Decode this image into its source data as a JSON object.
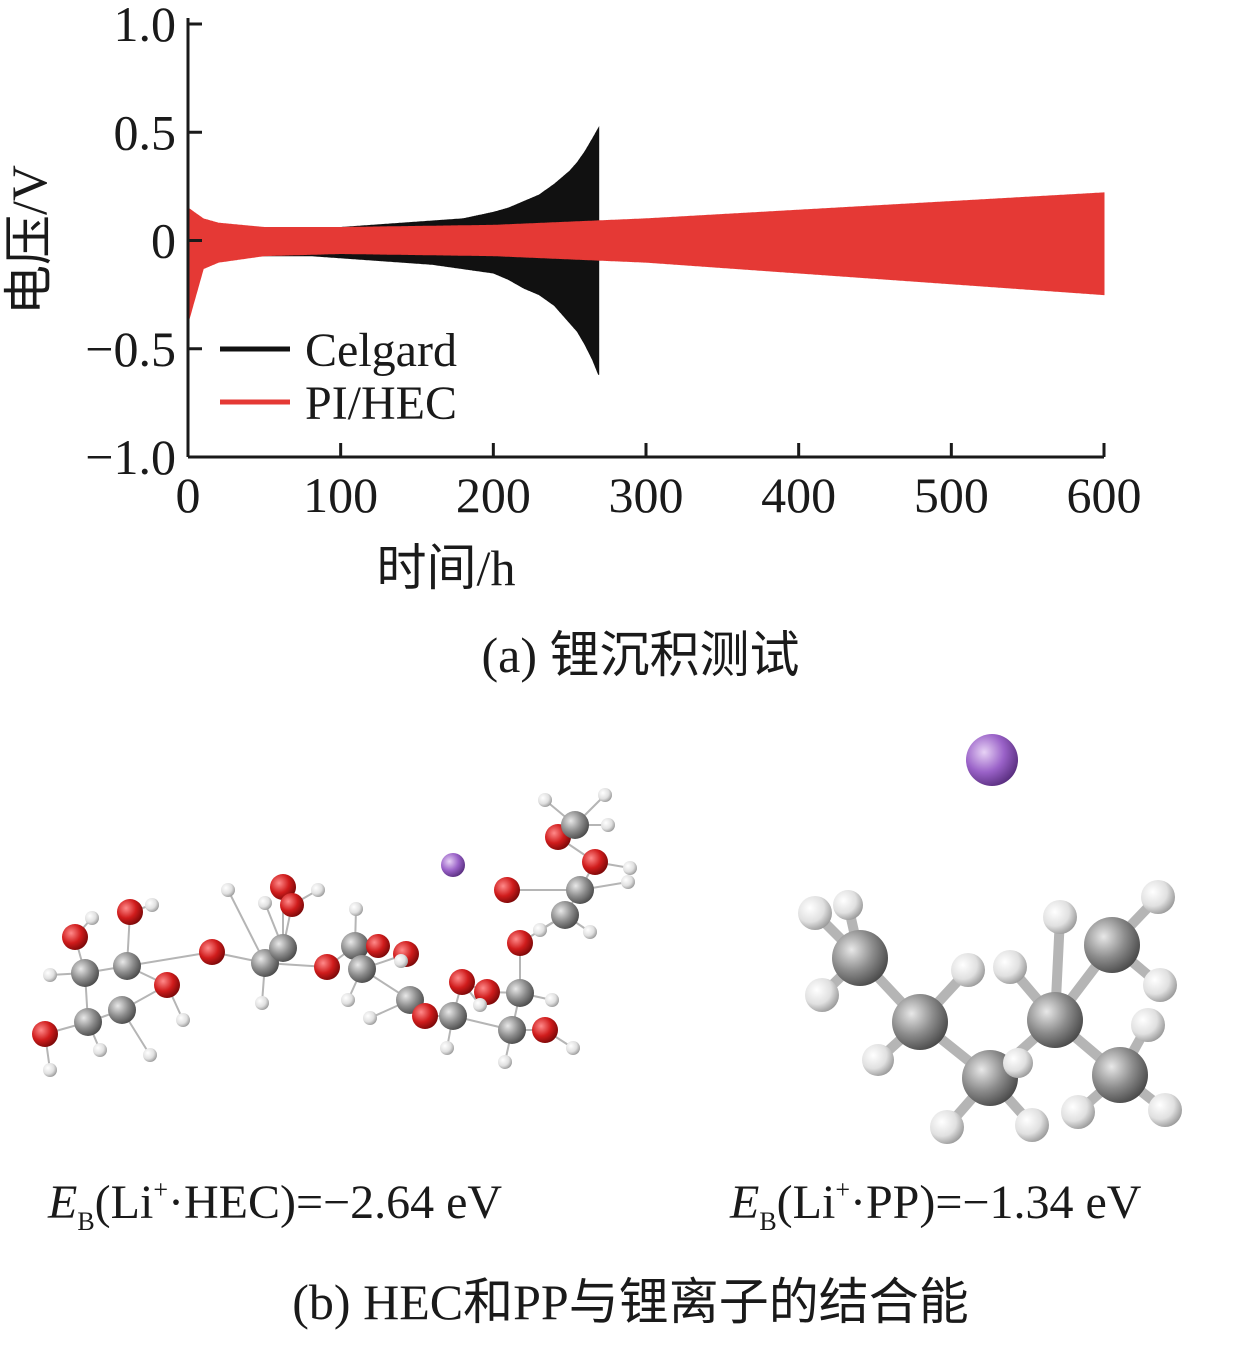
{
  "chart_data": {
    "type": "line",
    "xlabel": "时间/h",
    "ylabel": "电压/V",
    "xlim": [
      0,
      600
    ],
    "ylim": [
      -1.0,
      1.0
    ],
    "x_ticks": [
      "0",
      "100",
      "200",
      "300",
      "400",
      "500",
      "600"
    ],
    "y_ticks": [
      "1.0",
      "0.5",
      "0",
      "−0.5",
      "−1.0"
    ],
    "legend_position": "bottom-left",
    "grid": false,
    "series": [
      {
        "name": "Celgard",
        "color": "#111111",
        "style": "oscillating envelope",
        "envelope_x": [
          0,
          20,
          40,
          60,
          80,
          100,
          120,
          140,
          160,
          180,
          200,
          210,
          220,
          230,
          240,
          250,
          255,
          260,
          265,
          269
        ],
        "upper": [
          0.11,
          0.07,
          0.05,
          0.05,
          0.05,
          0.06,
          0.07,
          0.08,
          0.09,
          0.1,
          0.13,
          0.15,
          0.18,
          0.21,
          0.26,
          0.32,
          0.36,
          0.41,
          0.47,
          0.52
        ],
        "lower": [
          -0.11,
          -0.08,
          -0.07,
          -0.07,
          -0.07,
          -0.08,
          -0.09,
          -0.1,
          -0.11,
          -0.13,
          -0.15,
          -0.18,
          -0.22,
          -0.25,
          -0.3,
          -0.38,
          -0.42,
          -0.48,
          -0.55,
          -0.62
        ]
      },
      {
        "name": "PI/HEC",
        "color": "#e53935",
        "style": "oscillating envelope",
        "envelope_x": [
          0,
          10,
          20,
          50,
          100,
          200,
          300,
          400,
          500,
          600
        ],
        "upper": [
          0.15,
          0.1,
          0.08,
          0.06,
          0.06,
          0.07,
          0.1,
          0.14,
          0.18,
          0.22
        ],
        "lower": [
          -0.38,
          -0.13,
          -0.1,
          -0.07,
          -0.06,
          -0.07,
          -0.1,
          -0.15,
          -0.2,
          -0.25
        ]
      }
    ]
  },
  "captions": {
    "a": "(a) 锂沉积测试",
    "b": "(b) HEC和PP与锂离子的结合能"
  },
  "binding_energies": [
    {
      "symbol": "E",
      "subscript": "B",
      "species": "Li",
      "charge": "+",
      "partner": "·HEC)=−2.64 eV"
    },
    {
      "symbol": "E",
      "subscript": "B",
      "species": "Li",
      "charge": "+",
      "partner": "·PP)=−1.34 eV"
    }
  ],
  "atom_colors": {
    "carbon": "#8c8c8c",
    "oxygen": "#d01c1c",
    "hydrogen": "#e6e6e6",
    "lithium": "#9a62c8"
  }
}
